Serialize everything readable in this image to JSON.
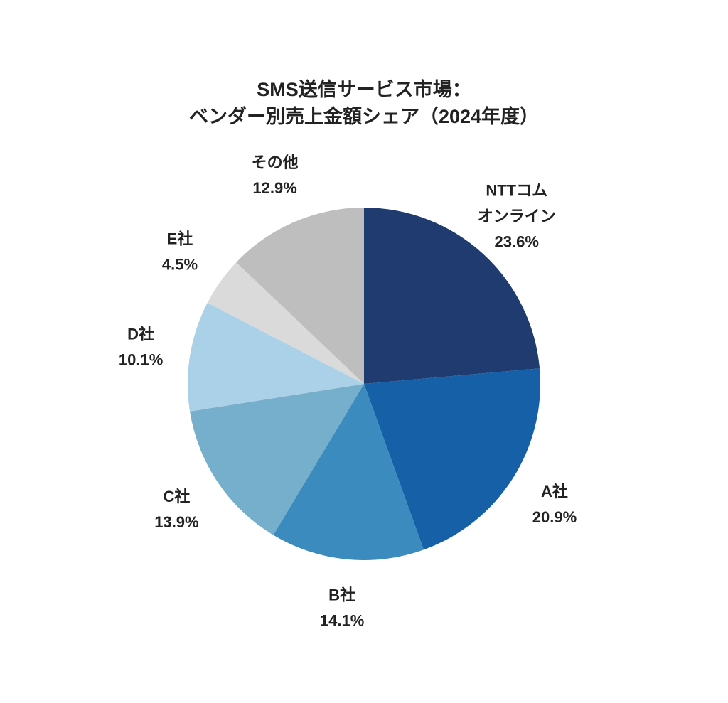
{
  "chart_data": {
    "type": "pie",
    "title": "SMS送信サービス市場：\nベンダー別売上金額シェア（2024年度）",
    "categories": [
      "NTTコム\nオンライン",
      "A社",
      "B社",
      "C社",
      "D社",
      "E社",
      "その他"
    ],
    "values": [
      23.6,
      20.9,
      14.1,
      13.9,
      10.1,
      4.5,
      12.9
    ],
    "value_labels": [
      "23.6%",
      "20.9%",
      "14.1%",
      "13.9%",
      "10.1%",
      "4.5%",
      "12.9%"
    ],
    "colors": [
      "#1f3b70",
      "#1660a8",
      "#3b8bbf",
      "#75afcb",
      "#aad1e7",
      "#dadada",
      "#bebebe"
    ]
  }
}
